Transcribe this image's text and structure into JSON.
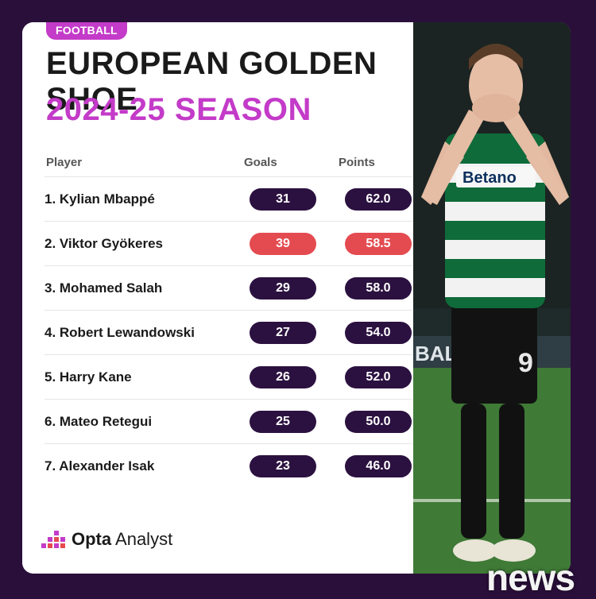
{
  "badge": "FOOTBALL",
  "title_line1": "EUROPEAN GOLDEN SHOE",
  "title_line2": "2024-25 SEASON",
  "headers": {
    "player": "Player",
    "goals": "Goals",
    "points": "Points"
  },
  "rows": [
    {
      "player": "1. Kylian Mbappé",
      "goals": "31",
      "points": "62.0",
      "highlight": false
    },
    {
      "player": "2. Viktor Gyökeres",
      "goals": "39",
      "points": "58.5",
      "highlight": true
    },
    {
      "player": "3. Mohamed Salah",
      "goals": "29",
      "points": "58.0",
      "highlight": false
    },
    {
      "player": "4. Robert Lewandowski",
      "goals": "27",
      "points": "54.0",
      "highlight": false
    },
    {
      "player": "5. Harry Kane",
      "goals": "26",
      "points": "52.0",
      "highlight": false
    },
    {
      "player": "6. Mateo Retegui",
      "goals": "25",
      "points": "50.0",
      "highlight": false
    },
    {
      "player": "7. Alexander Isak",
      "goals": "23",
      "points": "46.0",
      "highlight": false
    }
  ],
  "logo": {
    "brand": "Opta",
    "product": "Analyst"
  },
  "photo": {
    "sponsor": "Betano",
    "shirt_number": "9",
    "board_text": "BALL"
  },
  "watermark": "news",
  "colors": {
    "background": "#2a0f3a",
    "accent_magenta": "#c33bc8",
    "pill_dark": "#2b1140",
    "pill_highlight": "#e44b50"
  }
}
